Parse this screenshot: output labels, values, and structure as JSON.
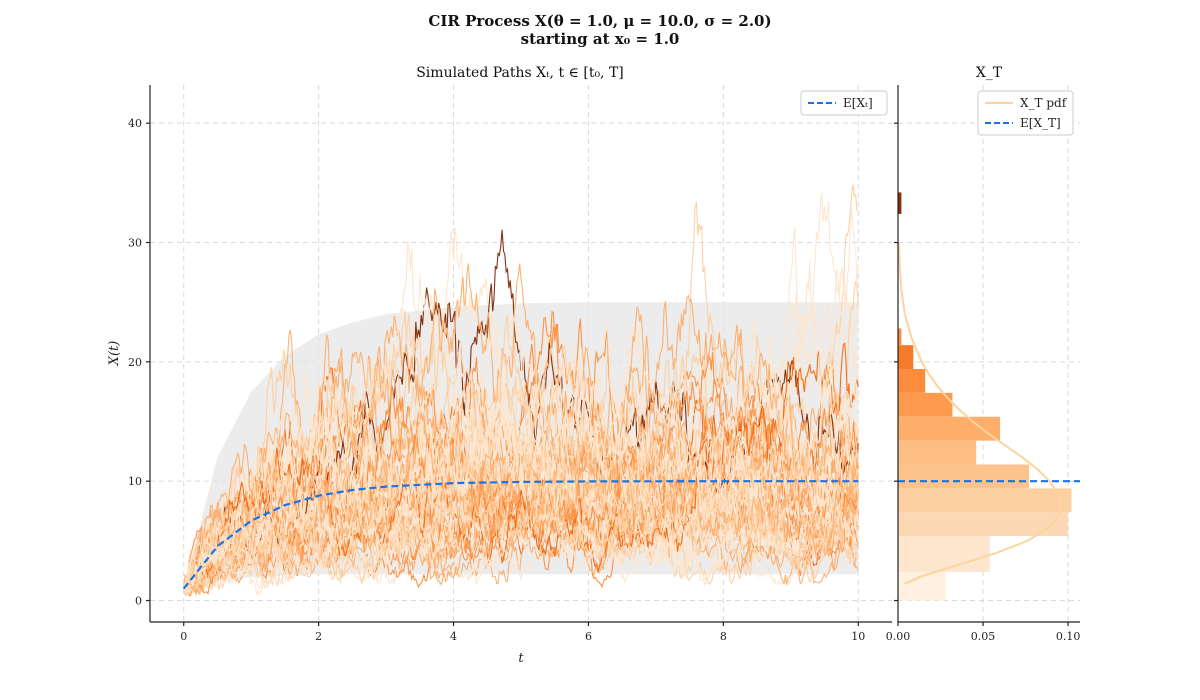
{
  "figure": {
    "title_line1": "CIR Process X(θ = 1.0, μ = 10.0, σ = 2.0)",
    "title_line2": "starting at x₀ = 1.0"
  },
  "chart_data": [
    {
      "type": "line",
      "title": "Simulated Paths Xₜ, t ∈ [t₀, T]",
      "xlabel": "t",
      "ylabel": "X(t)",
      "xlim": [
        -0.5,
        10.5
      ],
      "ylim": [
        -1.8,
        43.2
      ],
      "xticks": [
        0,
        2,
        4,
        6,
        8,
        10
      ],
      "yticks": [
        0,
        10,
        20,
        30,
        40
      ],
      "grid": true,
      "legend": {
        "placement": "top-right",
        "entries": [
          "E[Xₜ]"
        ]
      },
      "parameters": {
        "theta": 1.0,
        "mu": 10.0,
        "sigma": 2.0,
        "x0": 1.0,
        "t_end": 10
      },
      "expectation_series": {
        "name": "E[Xₜ]",
        "x": [
          0,
          0.5,
          1,
          1.5,
          2,
          2.5,
          3,
          4,
          5,
          6,
          7,
          8,
          9,
          10
        ],
        "values": [
          1.0,
          4.54,
          6.69,
          7.99,
          8.78,
          9.26,
          9.55,
          9.84,
          9.94,
          9.98,
          9.99,
          10.0,
          10.0,
          10.0
        ],
        "color": "#1a73e8"
      },
      "confidence_band": {
        "x": [
          0,
          0.5,
          1,
          1.5,
          2,
          2.5,
          3,
          4,
          5,
          6,
          7,
          8,
          9,
          10
        ],
        "upper": [
          1.0,
          12.0,
          17.5,
          20.5,
          22.3,
          23.3,
          24.0,
          24.6,
          24.9,
          25.0,
          25.0,
          25.0,
          25.0,
          25.0
        ],
        "lower": [
          1.0,
          1.5,
          2.0,
          2.1,
          2.2,
          2.2,
          2.2,
          2.2,
          2.2,
          2.2,
          2.2,
          2.2,
          2.2,
          2.2
        ],
        "color": "#e6e6e6"
      },
      "simulated_paths": {
        "count": 60,
        "dt": 0.01,
        "colormap": "Oranges",
        "note": "stochastic sample paths"
      }
    },
    {
      "type": "histogram",
      "title": "X_T",
      "xlabel": "",
      "xlim": [
        0,
        0.107
      ],
      "xticks": [
        0.0,
        0.05,
        0.1
      ],
      "xtick_labels": [
        "0.00",
        "0.05",
        "0.10"
      ],
      "orientation": "horizontal",
      "bin_edges": [
        0,
        2.4,
        5.4,
        7.4,
        9.4,
        11.4,
        13.4,
        15.4,
        17.4,
        19.4,
        21.4
      ],
      "densities": [
        0.028,
        0.054,
        0.1,
        0.102,
        0.077,
        0.046,
        0.06,
        0.032,
        0.016,
        0.009
      ],
      "tail_bins": [
        {
          "lo": 21.4,
          "hi": 22.8,
          "density": 0.002
        },
        {
          "lo": 32.4,
          "hi": 34.2,
          "density": 0.002
        }
      ],
      "pdf_series": {
        "name": "X_T pdf",
        "x": [
          1.4,
          2,
          3,
          4,
          5,
          6,
          7,
          8,
          9,
          10,
          11,
          12,
          13,
          14,
          15,
          16,
          17,
          18,
          19,
          20,
          22,
          24,
          26,
          28,
          30
        ],
        "values": [
          0.004,
          0.013,
          0.036,
          0.058,
          0.076,
          0.088,
          0.094,
          0.096,
          0.094,
          0.089,
          0.082,
          0.073,
          0.063,
          0.053,
          0.044,
          0.036,
          0.029,
          0.023,
          0.018,
          0.014,
          0.008,
          0.004,
          0.002,
          0.001,
          0.0005
        ],
        "color": "#fdd49e"
      },
      "expectation": {
        "name": "E[X_T]",
        "value": 10.0,
        "color": "#1a73e8"
      },
      "legend": {
        "placement": "top-right",
        "entries": [
          "X_T pdf",
          "E[X_T]"
        ]
      },
      "grid": true
    }
  ]
}
